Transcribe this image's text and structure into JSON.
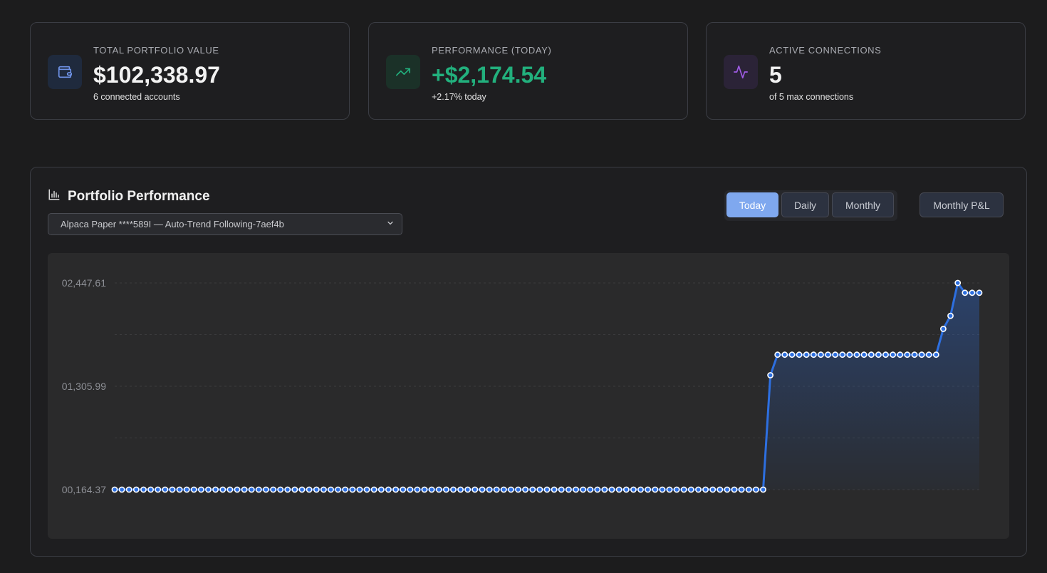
{
  "cards": [
    {
      "label": "TOTAL PORTFOLIO VALUE",
      "value": "$102,338.97",
      "sub": "6 connected accounts",
      "icon": "wallet-icon",
      "accent": "#6f93e8"
    },
    {
      "label": "PERFORMANCE (TODAY)",
      "value": "+$2,174.54",
      "sub": "+2.17% today",
      "icon": "trending-up-icon",
      "accent": "#22b07d"
    },
    {
      "label": "ACTIVE CONNECTIONS",
      "value": "5",
      "sub": "of 5 max connections",
      "icon": "activity-icon",
      "accent": "#a05ce6"
    }
  ],
  "panel": {
    "title": "Portfolio Performance",
    "title_icon": "bar-chart-icon",
    "account_select": {
      "value": "Alpaca Paper ****589I — Auto-Trend Following-7aef4b"
    },
    "ranges": [
      {
        "label": "Today",
        "active": true
      },
      {
        "label": "Daily",
        "active": false
      },
      {
        "label": "Monthly",
        "active": false
      }
    ],
    "pl_button": "Monthly P&L"
  },
  "chart_data": {
    "type": "line",
    "y_tick_labels": [
      "02,447.61",
      "01,305.99",
      "00,164.37"
    ],
    "ylim": [
      100164.37,
      102447.61
    ],
    "grid": true,
    "line_color": "#2d6fe0",
    "values": [
      100164.37,
      100164.37,
      100164.37,
      100164.37,
      100164.37,
      100164.37,
      100164.37,
      100164.37,
      100164.37,
      100164.37,
      100164.37,
      100164.37,
      100164.37,
      100164.37,
      100164.37,
      100164.37,
      100164.37,
      100164.37,
      100164.37,
      100164.37,
      100164.37,
      100164.37,
      100164.37,
      100164.37,
      100164.37,
      100164.37,
      100164.37,
      100164.37,
      100164.37,
      100164.37,
      100164.37,
      100164.37,
      100164.37,
      100164.37,
      100164.37,
      100164.37,
      100164.37,
      100164.37,
      100164.37,
      100164.37,
      100164.37,
      100164.37,
      100164.37,
      100164.37,
      100164.37,
      100164.37,
      100164.37,
      100164.37,
      100164.37,
      100164.37,
      100164.37,
      100164.37,
      100164.37,
      100164.37,
      100164.37,
      100164.37,
      100164.37,
      100164.37,
      100164.37,
      100164.37,
      100164.37,
      100164.37,
      100164.37,
      100164.37,
      100164.37,
      100164.37,
      100164.37,
      100164.37,
      100164.37,
      100164.37,
      100164.37,
      100164.37,
      100164.37,
      100164.37,
      100164.37,
      100164.37,
      100164.37,
      100164.37,
      100164.37,
      100164.37,
      100164.37,
      100164.37,
      100164.37,
      100164.37,
      100164.37,
      100164.37,
      100164.37,
      100164.37,
      100164.37,
      100164.37,
      100164.37,
      101428.0,
      101655.0,
      101655.0,
      101655.0,
      101655.0,
      101655.0,
      101655.0,
      101655.0,
      101655.0,
      101655.0,
      101655.0,
      101655.0,
      101655.0,
      101655.0,
      101655.0,
      101655.0,
      101655.0,
      101655.0,
      101655.0,
      101655.0,
      101655.0,
      101655.0,
      101655.0,
      101655.0,
      101940.0,
      102085.0,
      102447.61,
      102338.97,
      102338.97,
      102338.97
    ]
  }
}
